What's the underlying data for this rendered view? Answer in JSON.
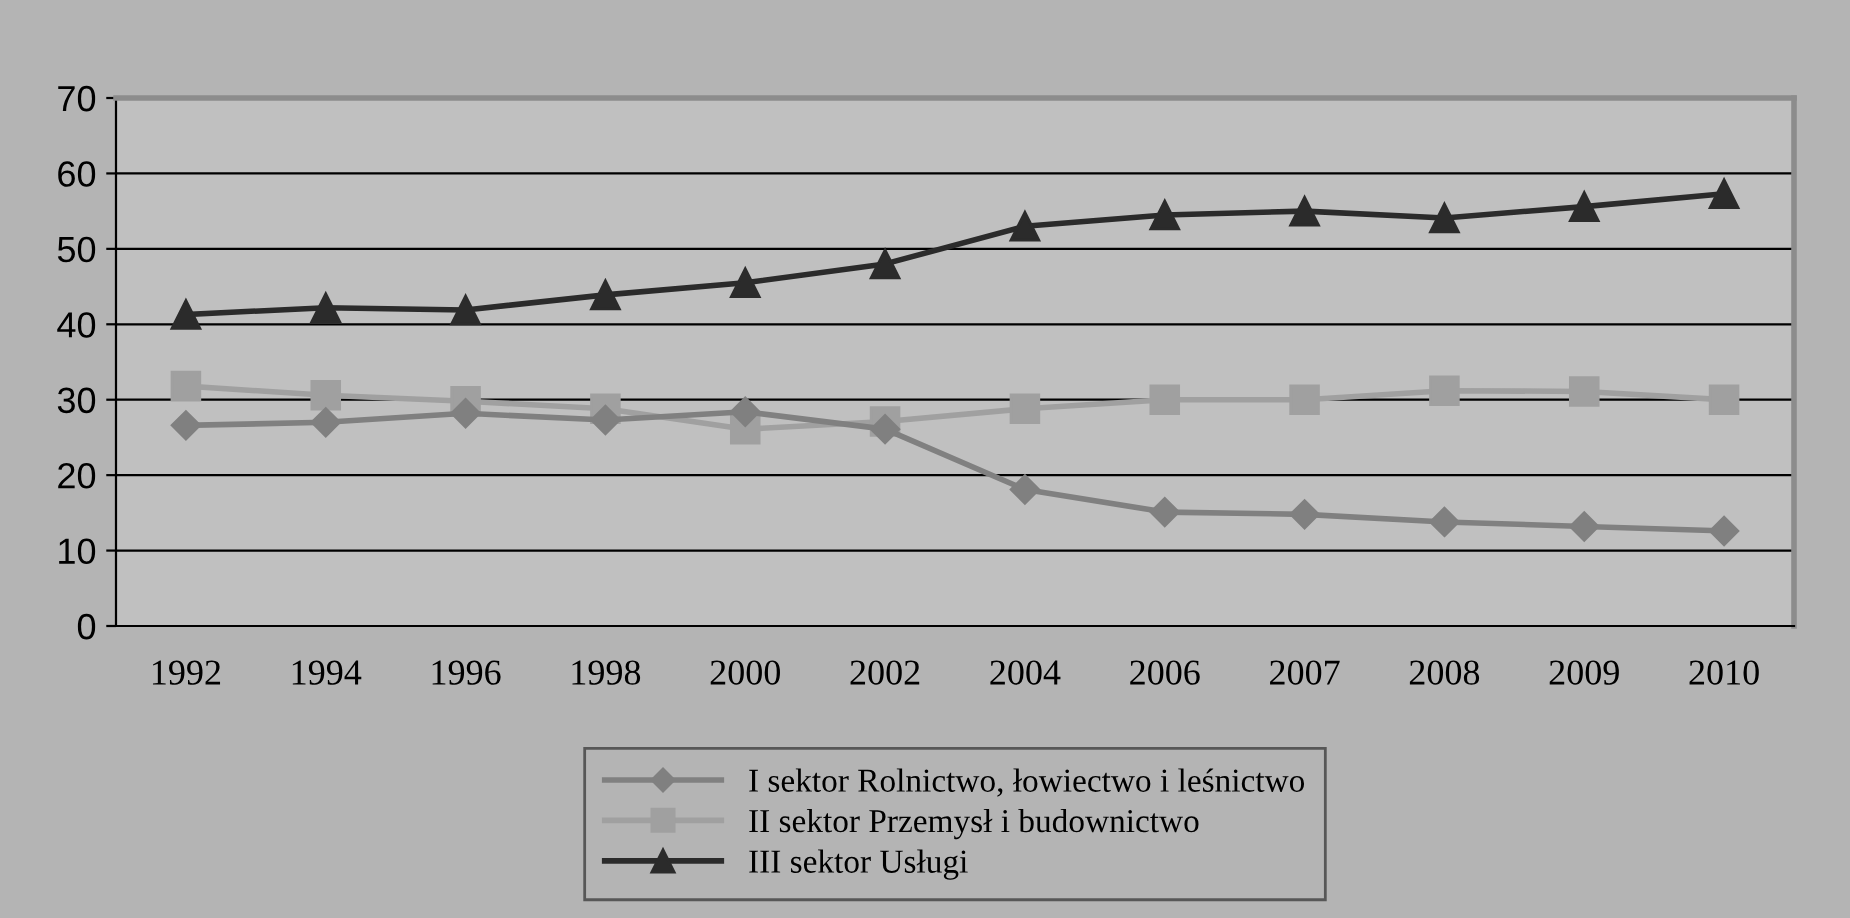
{
  "chart_data": {
    "type": "line",
    "categories": [
      "1992",
      "1994",
      "1996",
      "1998",
      "2000",
      "2002",
      "2004",
      "2006",
      "2007",
      "2008",
      "2009",
      "2010"
    ],
    "series": [
      {
        "name": "I sektor Rolnictwo, łowiectwo i leśnictwo",
        "color": "#808080",
        "marker": "diamond",
        "values": [
          26.6,
          27.0,
          28.2,
          27.3,
          28.4,
          26.1,
          18.1,
          15.1,
          14.8,
          13.8,
          13.2,
          12.6
        ]
      },
      {
        "name": "II sektor Przemysł i budownictwo",
        "color": "#a0a0a0",
        "marker": "square",
        "values": [
          31.8,
          30.6,
          29.8,
          28.8,
          26.1,
          27.1,
          28.8,
          30.0,
          30.0,
          31.2,
          31.1,
          30.0
        ]
      },
      {
        "name": "III sektor Usługi",
        "color": "#2b2b2b",
        "marker": "triangle",
        "values": [
          41.3,
          42.2,
          41.9,
          43.9,
          45.5,
          48.0,
          53.0,
          54.5,
          55.0,
          54.1,
          55.6,
          57.3
        ]
      }
    ],
    "ylim": [
      0,
      70
    ],
    "yticks": [
      0,
      10,
      20,
      30,
      40,
      50,
      60,
      70
    ],
    "grid": "y",
    "legend": "bottom"
  }
}
